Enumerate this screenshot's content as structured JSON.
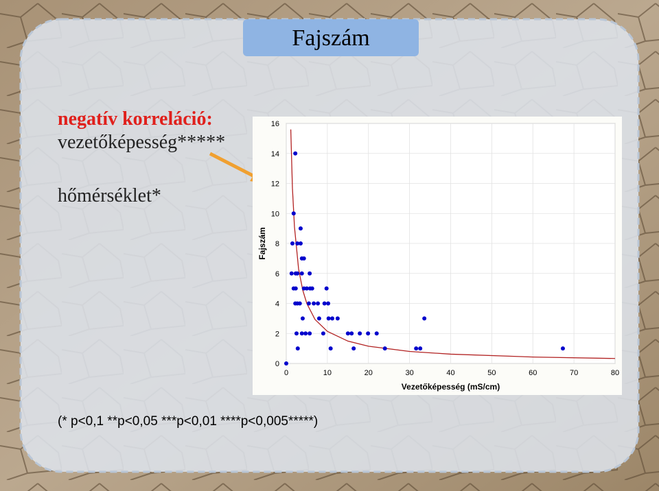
{
  "slide": {
    "title": "Fajszám",
    "heading": "negatív korreláció:",
    "lines": [
      "vezetőképesség*****",
      "hőmérséklet*"
    ],
    "footnote": "(* p<0,1 **p<0,05 ***p<0,01 ****p<0,005*****)"
  },
  "chart_data": {
    "type": "scatter",
    "x_label": "Vezetőképesség (mS/cm)",
    "y_label": "Fajszám",
    "color": "#0000cc",
    "grid": true,
    "xlim": [
      0,
      80
    ],
    "ylim": [
      0,
      16
    ],
    "xticks": [
      0,
      10,
      20,
      30,
      40,
      50,
      60,
      70,
      80
    ],
    "yticks": [
      0,
      2,
      4,
      6,
      8,
      10,
      12,
      14,
      16
    ],
    "x": [
      0,
      2.2,
      1.8,
      3.5,
      1.5,
      2.7,
      3.5,
      3.8,
      4.3,
      1.3,
      2.3,
      2.7,
      3.8,
      5.7,
      1.8,
      2.3,
      4.3,
      5,
      5.8,
      6.3,
      9.8,
      2.2,
      2.7,
      3.3,
      5.5,
      6.7,
      7.7,
      9.3,
      10.2,
      4,
      8,
      10.3,
      11.2,
      12.5,
      33.6,
      2.5,
      3.8,
      4.7,
      5.7,
      9,
      15,
      15.9,
      17.9,
      19.9,
      22,
      2.8,
      10.8,
      16.4,
      24,
      31.6,
      32.6,
      67.3
    ],
    "values": [
      0,
      14,
      10,
      9,
      8,
      8,
      8,
      7,
      7,
      6,
      6,
      6,
      6,
      6,
      5,
      5,
      5,
      5,
      5,
      5,
      5,
      4,
      4,
      4,
      4,
      4,
      4,
      4,
      4,
      3,
      3,
      3,
      3,
      3,
      3,
      2,
      2,
      2,
      2,
      2,
      2,
      2,
      2,
      2,
      2,
      1,
      1,
      1,
      1,
      1,
      1,
      1
    ],
    "curve": {
      "color": "#b22222",
      "x": [
        1.1,
        1.5,
        2,
        3,
        4,
        5,
        7,
        10,
        15,
        20,
        30,
        40,
        60,
        80
      ],
      "values": [
        15.6,
        11.7,
        9.1,
        6.3,
        4.9,
        4.0,
        2.93,
        2.14,
        1.49,
        1.15,
        0.8,
        0.62,
        0.43,
        0.33
      ]
    }
  }
}
